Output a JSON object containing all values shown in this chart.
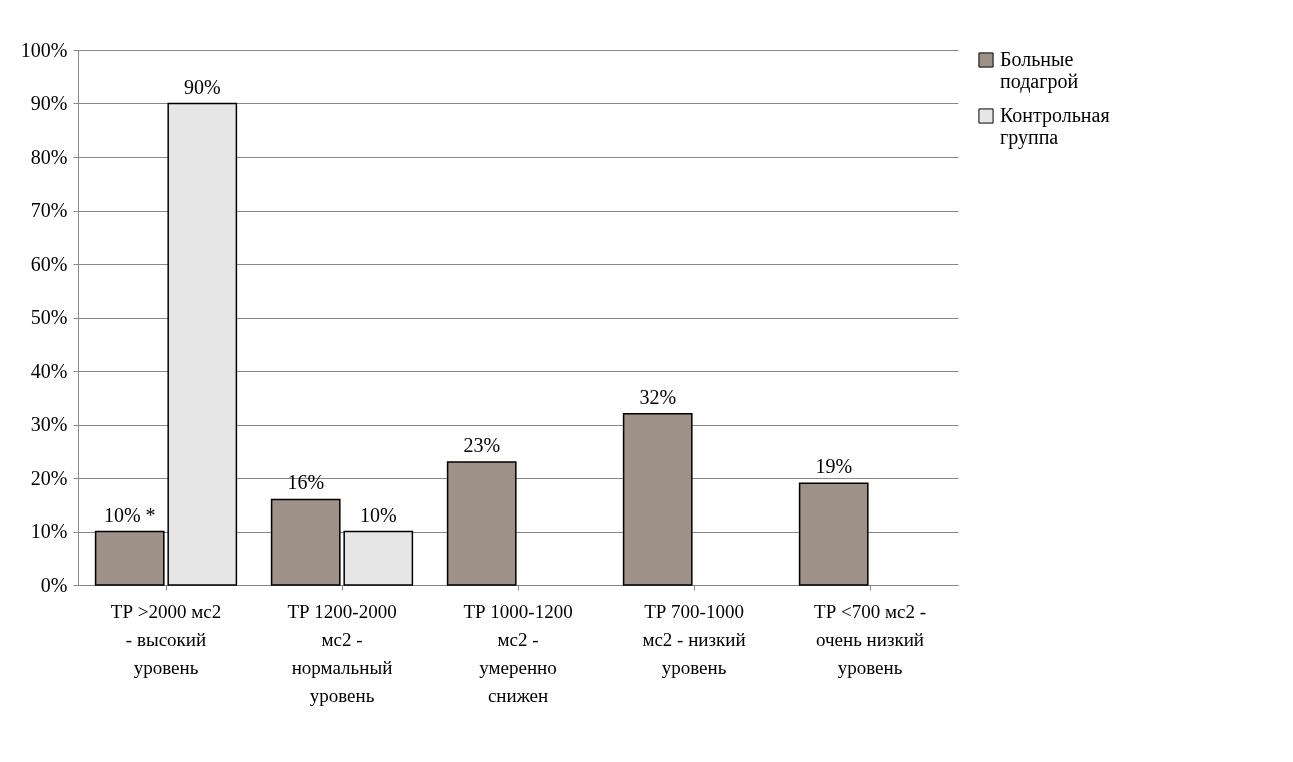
{
  "chart_data": {
    "type": "bar",
    "categories": [
      "ТР >2000 мс2 - высокий уровень",
      "ТР 1200-2000 мс2 - нормальный уровень",
      "ТР 1000-1200 мс2 - умеренно снижен",
      "ТР 700-1000 мс2 - низкий уровень",
      "ТР <700 мс2 - очень низкий уровень"
    ],
    "series": [
      {
        "name": "Больные подагрой",
        "color": "#9e9188",
        "values": [
          10,
          16,
          23,
          32,
          19
        ],
        "value_labels": [
          "10% *",
          "16%",
          "23%",
          "32%",
          "19%"
        ]
      },
      {
        "name": "Контрольная группа",
        "color": "#e6e6e6",
        "values": [
          90,
          10,
          null,
          null,
          null
        ],
        "value_labels": [
          "90%",
          "10%",
          null,
          null,
          null
        ]
      }
    ],
    "ylim": [
      0,
      100
    ],
    "yticks": [
      {
        "value": 0,
        "label": "0%"
      },
      {
        "value": 10,
        "label": "10%"
      },
      {
        "value": 20,
        "label": "20%"
      },
      {
        "value": 30,
        "label": "30%"
      },
      {
        "value": 40,
        "label": "40%"
      },
      {
        "value": 50,
        "label": "50%"
      },
      {
        "value": 60,
        "label": "60%"
      },
      {
        "value": 70,
        "label": "70%"
      },
      {
        "value": 80,
        "label": "80%"
      },
      {
        "value": 90,
        "label": "90%"
      },
      {
        "value": 100,
        "label": "100%"
      }
    ],
    "grid": "y",
    "legend": "right"
  }
}
